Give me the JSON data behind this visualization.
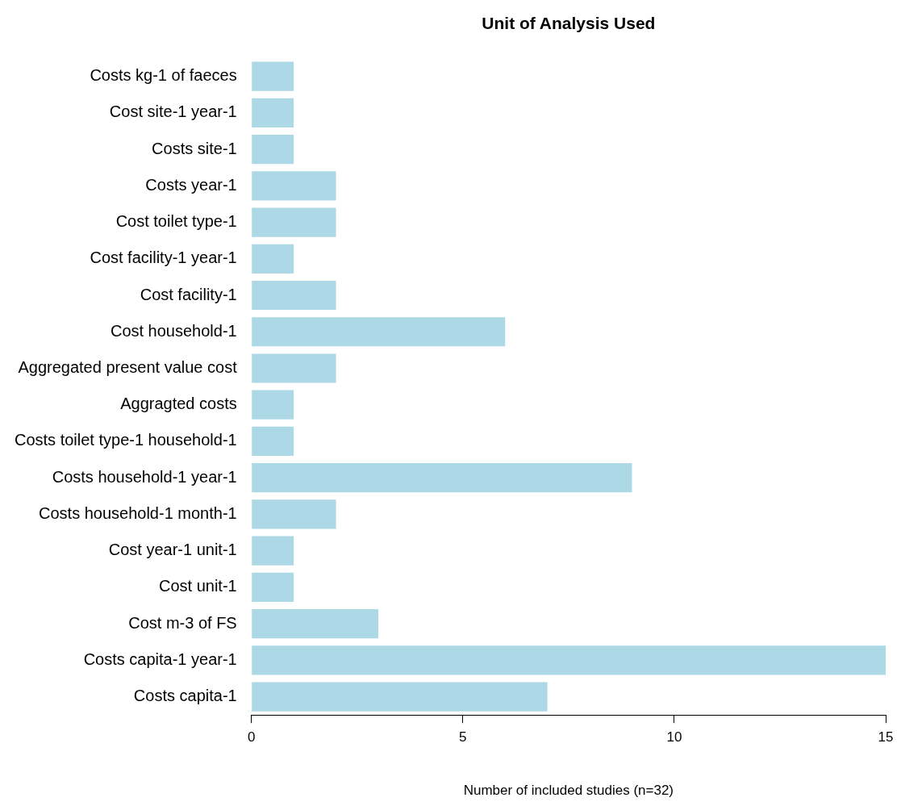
{
  "chart_data": {
    "type": "bar",
    "orientation": "horizontal",
    "title": "Unit of Analysis Used",
    "xlabel": "Number of included studies (n=32)",
    "categories": [
      "Costs kg-1 of faeces",
      "Cost site-1 year-1",
      "Costs site-1",
      "Costs year-1",
      "Cost toilet type-1",
      "Cost facility-1 year-1",
      "Cost facility-1",
      "Cost household-1",
      "Aggregated present value cost",
      "Aggragted costs",
      "Costs toilet type-1 household-1",
      "Costs household-1 year-1",
      "Costs household-1 month-1",
      "Cost year-1 unit-1",
      "Cost unit-1",
      "Cost m-3 of FS",
      "Costs capita-1 year-1",
      "Costs capita-1"
    ],
    "values": [
      1,
      1,
      1,
      2,
      2,
      1,
      2,
      6,
      2,
      1,
      1,
      9,
      2,
      1,
      1,
      3,
      15,
      7
    ],
    "color": "#add8e6",
    "xlim": [
      0,
      15
    ],
    "xticks": [
      0,
      5,
      10,
      15
    ],
    "grid": false,
    "legend": false
  }
}
